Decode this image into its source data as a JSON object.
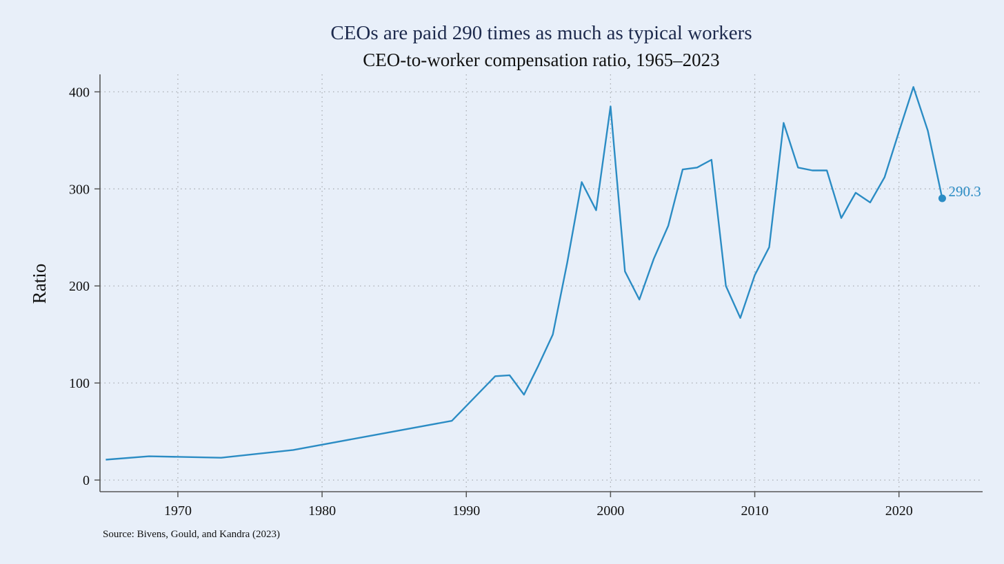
{
  "chart_data": {
    "type": "line",
    "title": "CEOs are paid 290 times as much as typical workers",
    "subtitle": "CEO-to-worker compensation ratio, 1965–2023",
    "xlabel": "",
    "ylabel": "Ratio",
    "source": "Source: Bivens, Gould, and Kandra (2023)",
    "xlim": [
      1964.6,
      2025.8
    ],
    "ylim": [
      -12,
      418
    ],
    "xticks": [
      1970,
      1980,
      1990,
      2000,
      2010,
      2020
    ],
    "yticks": [
      0,
      100,
      200,
      300,
      400
    ],
    "grid": true,
    "line_color": "#2b8cc4",
    "end_label": "290.3",
    "series": [
      {
        "x": [
          1965,
          1968,
          1973,
          1978,
          1989,
          1992,
          1993,
          1994,
          1995,
          1996,
          1997,
          1998,
          1999,
          2000,
          2001,
          2002,
          2003,
          2004,
          2005,
          2006,
          2007,
          2008,
          2009,
          2010,
          2011,
          2012,
          2013,
          2014,
          2015,
          2016,
          2017,
          2018,
          2019,
          2020,
          2021,
          2022,
          2023
        ],
        "values": [
          21,
          24.5,
          23,
          31,
          61,
          107,
          108,
          88,
          118,
          150,
          224,
          307,
          278,
          385,
          215,
          186,
          228,
          262,
          320,
          322,
          330,
          200,
          167,
          211,
          240,
          368,
          322,
          319,
          319,
          270,
          296,
          286,
          312,
          359,
          405,
          360,
          290.3
        ]
      }
    ]
  }
}
